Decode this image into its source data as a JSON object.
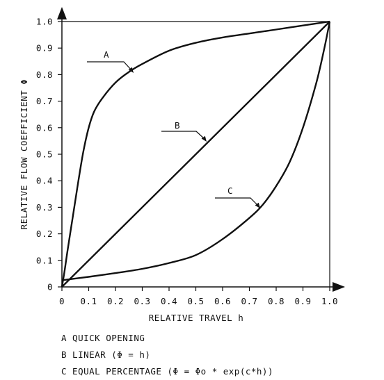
{
  "chart_data": {
    "type": "line",
    "xlabel": "RELATIVE TRAVEL h",
    "ylabel": "RELATIVE FLOW COEFFICIENT Φ",
    "xlim": [
      0,
      1
    ],
    "ylim": [
      0,
      1
    ],
    "x_ticks": [
      "0",
      "0.1",
      "0.2",
      "0.3",
      "0.4",
      "0.5",
      "0.6",
      "0.7",
      "0.8",
      "0.9",
      "1.0"
    ],
    "y_ticks": [
      "0",
      "0.1",
      "0.2",
      "0.3",
      "0.4",
      "0.5",
      "0.6",
      "0.7",
      "0.8",
      "0.9",
      "1.0"
    ],
    "grid": false,
    "series": [
      {
        "name": "A",
        "x": [
          0,
          0.01,
          0.02,
          0.04,
          0.06,
          0.08,
          0.1,
          0.12,
          0.15,
          0.2,
          0.25,
          0.3,
          0.4,
          0.5,
          0.6,
          0.7,
          0.8,
          0.9,
          1.0
        ],
        "y": [
          0,
          0.06,
          0.13,
          0.26,
          0.39,
          0.51,
          0.6,
          0.66,
          0.71,
          0.77,
          0.81,
          0.84,
          0.89,
          0.92,
          0.94,
          0.955,
          0.97,
          0.985,
          1.0
        ]
      },
      {
        "name": "B",
        "x": [
          0,
          1.0
        ],
        "y": [
          0,
          1.0
        ]
      },
      {
        "name": "C",
        "x": [
          0,
          0.1,
          0.2,
          0.3,
          0.4,
          0.5,
          0.6,
          0.7,
          0.75,
          0.8,
          0.85,
          0.9,
          0.95,
          0.98,
          1.0
        ],
        "y": [
          0.025,
          0.038,
          0.052,
          0.068,
          0.09,
          0.12,
          0.18,
          0.26,
          0.31,
          0.38,
          0.47,
          0.6,
          0.77,
          0.9,
          1.0
        ]
      }
    ],
    "annotations": [
      "A",
      "B",
      "C"
    ],
    "legend": [
      "A QUICK OPENING",
      "B LINEAR (Φ = h)",
      "C EQUAL PERCENTAGE (Φ = Φo * exp(c*h))"
    ]
  }
}
